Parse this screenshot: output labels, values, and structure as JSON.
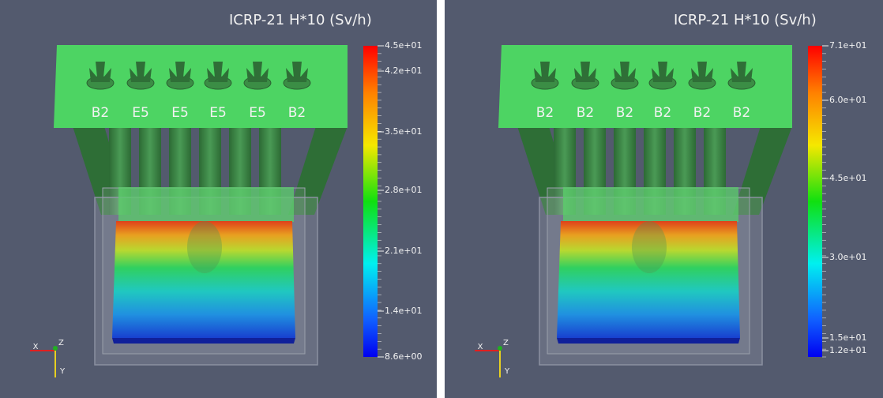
{
  "panels": [
    {
      "title": "ICRP-21 H*10 (Sv/h)",
      "slot_labels": [
        "B2",
        "E5",
        "E5",
        "E5",
        "E5",
        "B2"
      ],
      "colorbar_labels": [
        "4.5e+01",
        "4.2e+01",
        "3.5e+01",
        "2.8e+01",
        "2.1e+01",
        "1.4e+01",
        "8.6e+00"
      ],
      "axes": {
        "x": "X",
        "y": "Y",
        "z": "Z"
      }
    },
    {
      "title": "ICRP-21 H*10 (Sv/h)",
      "slot_labels": [
        "B2",
        "B2",
        "B2",
        "B2",
        "B2",
        "B2"
      ],
      "colorbar_labels": [
        "7.1e+01",
        "6.0e+01",
        "4.5e+01",
        "3.0e+01",
        "1.5e+01",
        "1.2e+01"
      ],
      "axes": {
        "x": "X",
        "y": "Y",
        "z": "Z"
      }
    }
  ]
}
